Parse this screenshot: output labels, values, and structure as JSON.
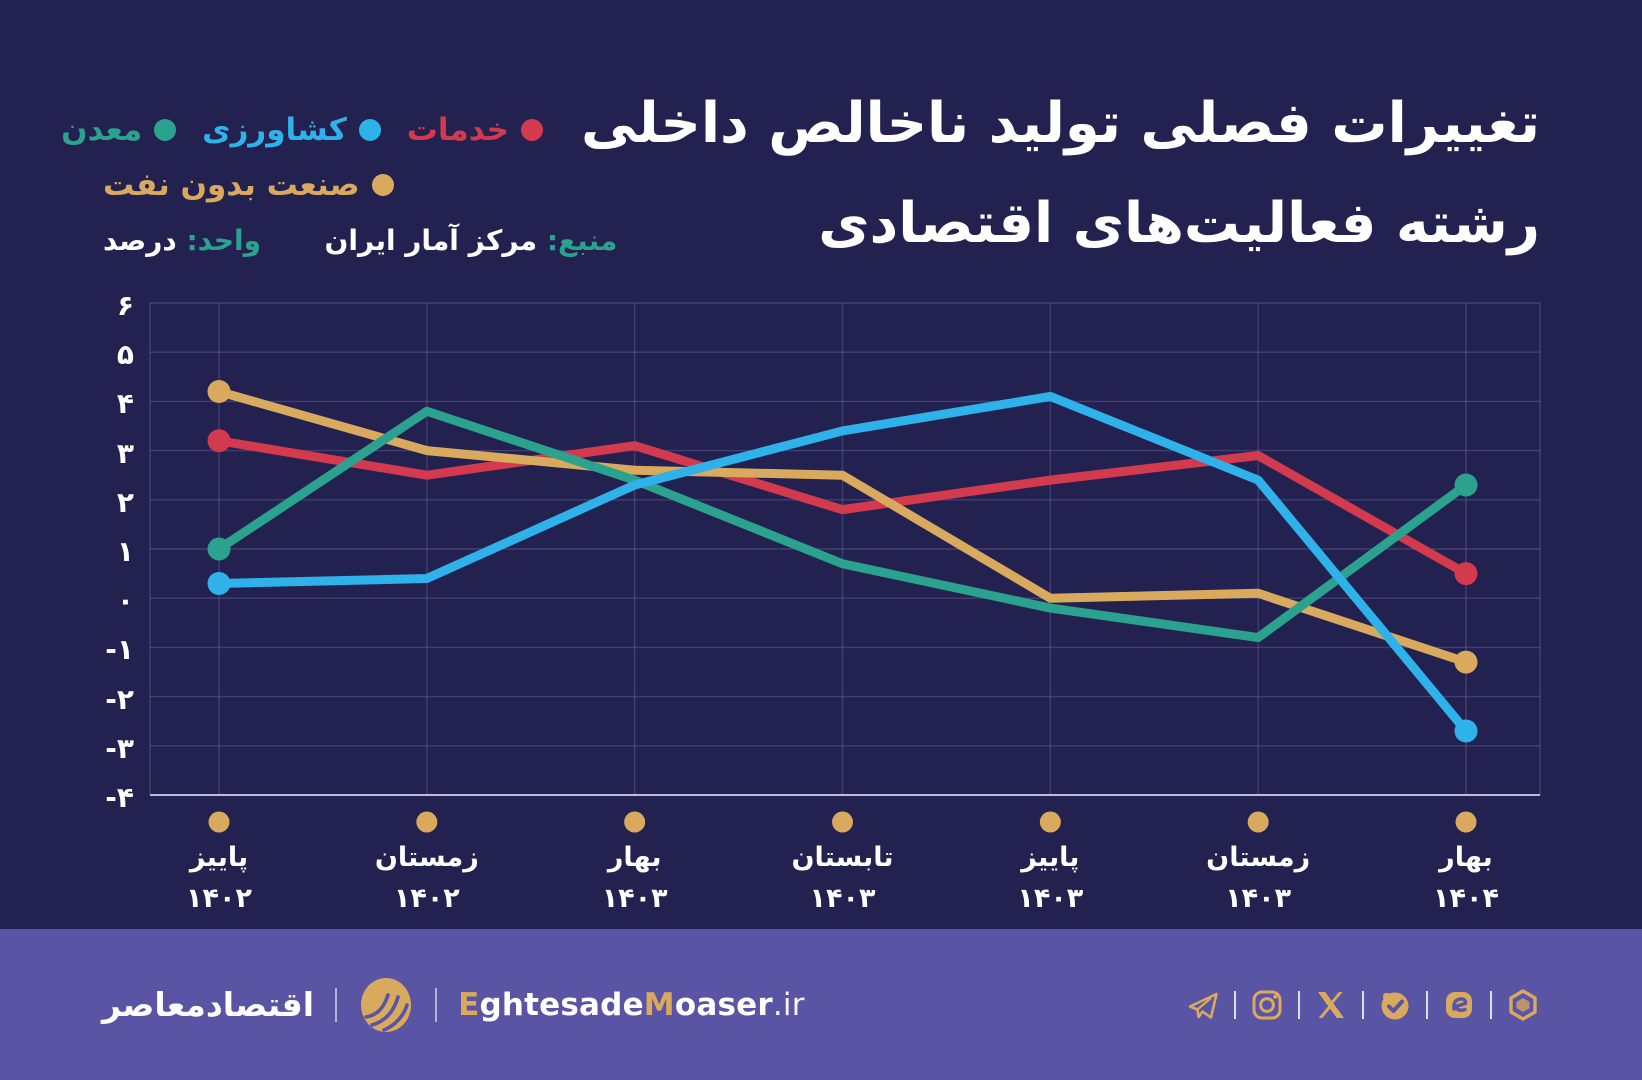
{
  "title": {
    "line1": "تغییرات فصلی تولید ناخالص داخلی",
    "line2": "رشته فعالیت‌های اقتصادی"
  },
  "legend": {
    "items": [
      {
        "key": "services",
        "label": "خدمات",
        "color": "#d43a4e",
        "row": 1
      },
      {
        "key": "agriculture",
        "label": "کشاورزی",
        "color": "#2fb1e9",
        "row": 1
      },
      {
        "key": "mining",
        "label": "معدن",
        "color": "#2aa28e",
        "row": 1
      },
      {
        "key": "industry-without-oil",
        "label": "صنعت بدون نفت",
        "color": "#d9aa5e",
        "row": 2
      }
    ]
  },
  "source": {
    "source_label": "منبع:",
    "source_value": "مرکز آمار ایران",
    "unit_label": "واحد:",
    "unit_value": "درصد"
  },
  "colors": {
    "background": "#232150",
    "footer_background": "#5954a3",
    "gold": "#d9aa5e",
    "teal_accent": "#2aa28e",
    "grid": "rgba(175,175,225,0.22)",
    "axis": "#bcbcd4",
    "text": "#ffffff"
  },
  "chart_data": {
    "type": "line",
    "title": "تغییرات فصلی تولید ناخالص داخلی رشته فعالیت‌های اقتصادی",
    "unit": "درصد",
    "categories": [
      {
        "season": "پاییز",
        "year": "۱۴۰۲"
      },
      {
        "season": "زمستان",
        "year": "۱۴۰۲"
      },
      {
        "season": "بهار",
        "year": "۱۴۰۳"
      },
      {
        "season": "تابستان",
        "year": "۱۴۰۳"
      },
      {
        "season": "پاییز",
        "year": "۱۴۰۳"
      },
      {
        "season": "زمستان",
        "year": "۱۴۰۳"
      },
      {
        "season": "بهار",
        "year": "۱۴۰۴"
      }
    ],
    "series": [
      {
        "key": "services",
        "name": "خدمات",
        "color": "#d43a4e",
        "values": [
          3.2,
          2.5,
          3.1,
          1.8,
          2.4,
          2.9,
          0.5
        ]
      },
      {
        "key": "industry-without-oil",
        "name": "صنعت بدون نفت",
        "color": "#d9aa5e",
        "values": [
          4.2,
          3.0,
          2.6,
          2.5,
          0.0,
          0.1,
          -1.3
        ]
      },
      {
        "key": "mining",
        "name": "معدن",
        "color": "#2aa28e",
        "values": [
          1.0,
          3.8,
          2.4,
          0.7,
          -0.2,
          -0.8,
          2.3
        ]
      },
      {
        "key": "agriculture",
        "name": "کشاورزی",
        "color": "#2fb1e9",
        "values": [
          0.3,
          0.4,
          2.3,
          3.4,
          4.1,
          2.4,
          -2.7
        ]
      }
    ],
    "ylim": [
      -4,
      6
    ],
    "ytick_step": 1,
    "ytick_labels": [
      "۶",
      "۵",
      "۴",
      "۳",
      "۲",
      "۱",
      "۰",
      "-۱",
      "-۲",
      "-۳",
      "-۴"
    ],
    "grid": true,
    "legend_position": "top-left"
  },
  "footer": {
    "brand_fa": "اقتصادمعاصر",
    "brand_en_parts": [
      {
        "text": "E",
        "gold": true,
        "tld": false
      },
      {
        "text": "ghtesade",
        "gold": false,
        "tld": false
      },
      {
        "text": "M",
        "gold": true,
        "tld": false
      },
      {
        "text": "oaser",
        "gold": false,
        "tld": false
      },
      {
        "text": ".ir",
        "gold": false,
        "tld": true
      }
    ],
    "social": [
      "telegram",
      "instagram",
      "x-twitter",
      "bale",
      "eitaa",
      "rubika"
    ]
  }
}
